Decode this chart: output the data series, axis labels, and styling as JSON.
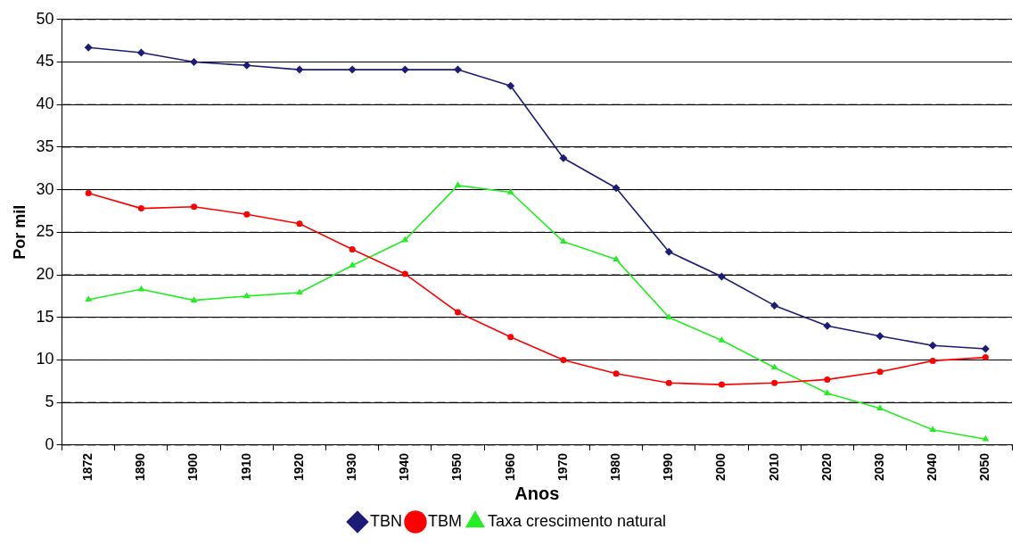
{
  "chart_data": {
    "type": "line",
    "xlabel": "Anos",
    "ylabel": "Por mil",
    "categories": [
      "1872",
      "1890",
      "1900",
      "1910",
      "1920",
      "1930",
      "1940",
      "1950",
      "1960",
      "1970",
      "1980",
      "1990",
      "2000",
      "2010",
      "2020",
      "2030",
      "2040",
      "2050"
    ],
    "series": [
      {
        "name": "TBN",
        "color": "#1c1c78",
        "marker": "diamond",
        "values": [
          46.7,
          46.1,
          45.0,
          44.6,
          44.1,
          44.1,
          44.1,
          44.1,
          42.2,
          33.7,
          30.2,
          22.7,
          19.8,
          16.4,
          14.0,
          12.8,
          11.7,
          11.3
        ]
      },
      {
        "name": "TBM",
        "color": "#ff0000",
        "marker": "circle",
        "values": [
          29.6,
          27.8,
          28.0,
          27.1,
          26.0,
          23.0,
          20.1,
          15.6,
          12.7,
          10.0,
          8.4,
          7.3,
          7.1,
          7.3,
          7.7,
          8.6,
          9.9,
          10.3
        ]
      },
      {
        "name": "Taxa crescimento natural",
        "color": "#22ee22",
        "marker": "triangle",
        "values": [
          17.1,
          18.3,
          17.0,
          17.5,
          17.9,
          21.1,
          24.1,
          30.5,
          29.7,
          23.9,
          21.8,
          15.0,
          12.3,
          9.1,
          6.1,
          4.3,
          1.8,
          0.7
        ]
      }
    ],
    "ylim": [
      0,
      50
    ],
    "yticks": [
      0,
      5,
      10,
      15,
      20,
      25,
      30,
      35,
      40,
      45,
      50
    ],
    "grid": "y",
    "legend": "bottom",
    "line_style": "solid"
  }
}
